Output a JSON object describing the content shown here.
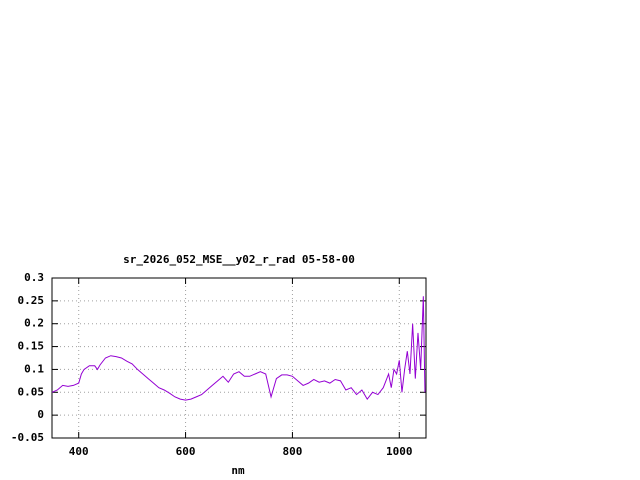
{
  "chart_data": {
    "type": "line",
    "title": "sr_2026_052_MSE__y02_r_rad 05-58-00",
    "x_label": "nm",
    "x": [
      350,
      360,
      370,
      380,
      390,
      400,
      405,
      410,
      420,
      430,
      435,
      440,
      450,
      460,
      470,
      480,
      490,
      500,
      510,
      520,
      530,
      540,
      550,
      560,
      570,
      580,
      590,
      600,
      610,
      620,
      630,
      640,
      650,
      660,
      670,
      680,
      690,
      700,
      710,
      720,
      730,
      740,
      750,
      760,
      770,
      780,
      790,
      800,
      810,
      820,
      830,
      840,
      850,
      860,
      870,
      880,
      890,
      900,
      910,
      920,
      930,
      940,
      950,
      960,
      970,
      980,
      985,
      990,
      995,
      1000,
      1005,
      1010,
      1015,
      1020,
      1025,
      1030,
      1035,
      1040,
      1045,
      1048
    ],
    "series": [
      {
        "color": "#9400d3",
        "values": [
          0.05,
          0.055,
          0.065,
          0.063,
          0.065,
          0.07,
          0.09,
          0.1,
          0.108,
          0.108,
          0.1,
          0.11,
          0.125,
          0.13,
          0.128,
          0.125,
          0.118,
          0.112,
          0.1,
          0.09,
          0.08,
          0.07,
          0.06,
          0.055,
          0.048,
          0.04,
          0.035,
          0.033,
          0.035,
          0.04,
          0.045,
          0.055,
          0.065,
          0.075,
          0.085,
          0.072,
          0.09,
          0.095,
          0.085,
          0.085,
          0.09,
          0.095,
          0.09,
          0.04,
          0.08,
          0.088,
          0.088,
          0.085,
          0.075,
          0.065,
          0.07,
          0.078,
          0.072,
          0.075,
          0.07,
          0.078,
          0.075,
          0.055,
          0.06,
          0.045,
          0.055,
          0.035,
          0.05,
          0.045,
          0.06,
          0.09,
          0.06,
          0.1,
          0.09,
          0.12,
          0.05,
          0.1,
          0.14,
          0.09,
          0.2,
          0.08,
          0.18,
          0.1,
          0.26,
          0.05
        ]
      }
    ],
    "xlim": [
      350,
      1050
    ],
    "xticks": [
      400,
      600,
      800,
      1000
    ],
    "ylim": [
      -0.05,
      0.3
    ],
    "yticks": [
      -0.05,
      0,
      0.05,
      0.1,
      0.15,
      0.2,
      0.25,
      0.3
    ],
    "grid": true
  }
}
